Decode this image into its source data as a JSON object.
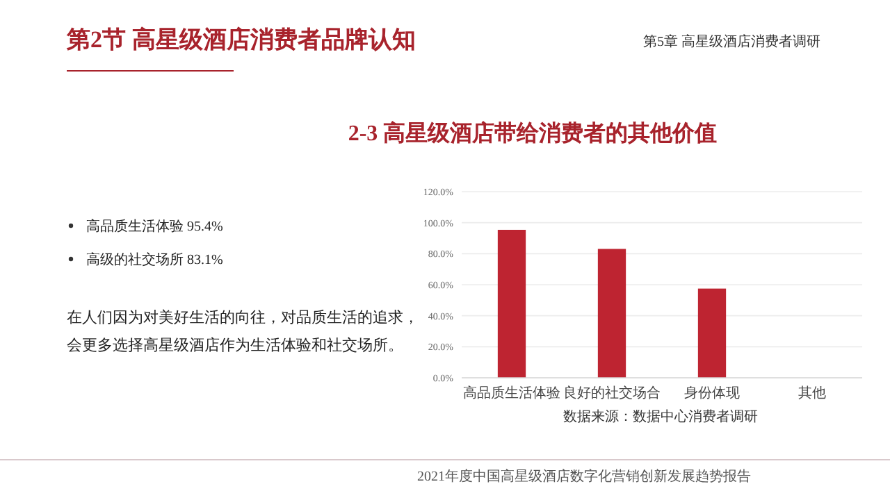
{
  "chart_data": {
    "type": "bar",
    "title": "2-3  高星级酒店带给消费者的其他价值",
    "categories": [
      "高品质生活体验",
      "良好的社交场合",
      "身份体现",
      "其他"
    ],
    "values": [
      95.4,
      83.1,
      57.5,
      0
    ],
    "color": "#be2431",
    "ylim": [
      0,
      120
    ],
    "yticks": [
      {
        "value": 0,
        "label": "0.0%"
      },
      {
        "value": 20,
        "label": "20.0%"
      },
      {
        "value": 40,
        "label": "40.0%"
      },
      {
        "value": 60,
        "label": "60.0%"
      },
      {
        "value": 80,
        "label": "80.0%"
      },
      {
        "value": 100,
        "label": "100.0%"
      },
      {
        "value": 120,
        "label": "120.0%"
      }
    ],
    "grid": "y",
    "annotations": [
      "第2节 高星级酒店消费者品牌认知",
      "第5章 高星级酒店消费者调研",
      "高品质生活体验  95.4%",
      "高级的社交场所  83.1%",
      "在人们因为对美好生活的向往，对品质生活的追求，",
      "会更多选择高星级酒店作为生活体验和社交场所。",
      "数据来源：数据中心消费者调研",
      "2021年度中国高星级酒店数字化营销创新发展趋势报告"
    ]
  }
}
